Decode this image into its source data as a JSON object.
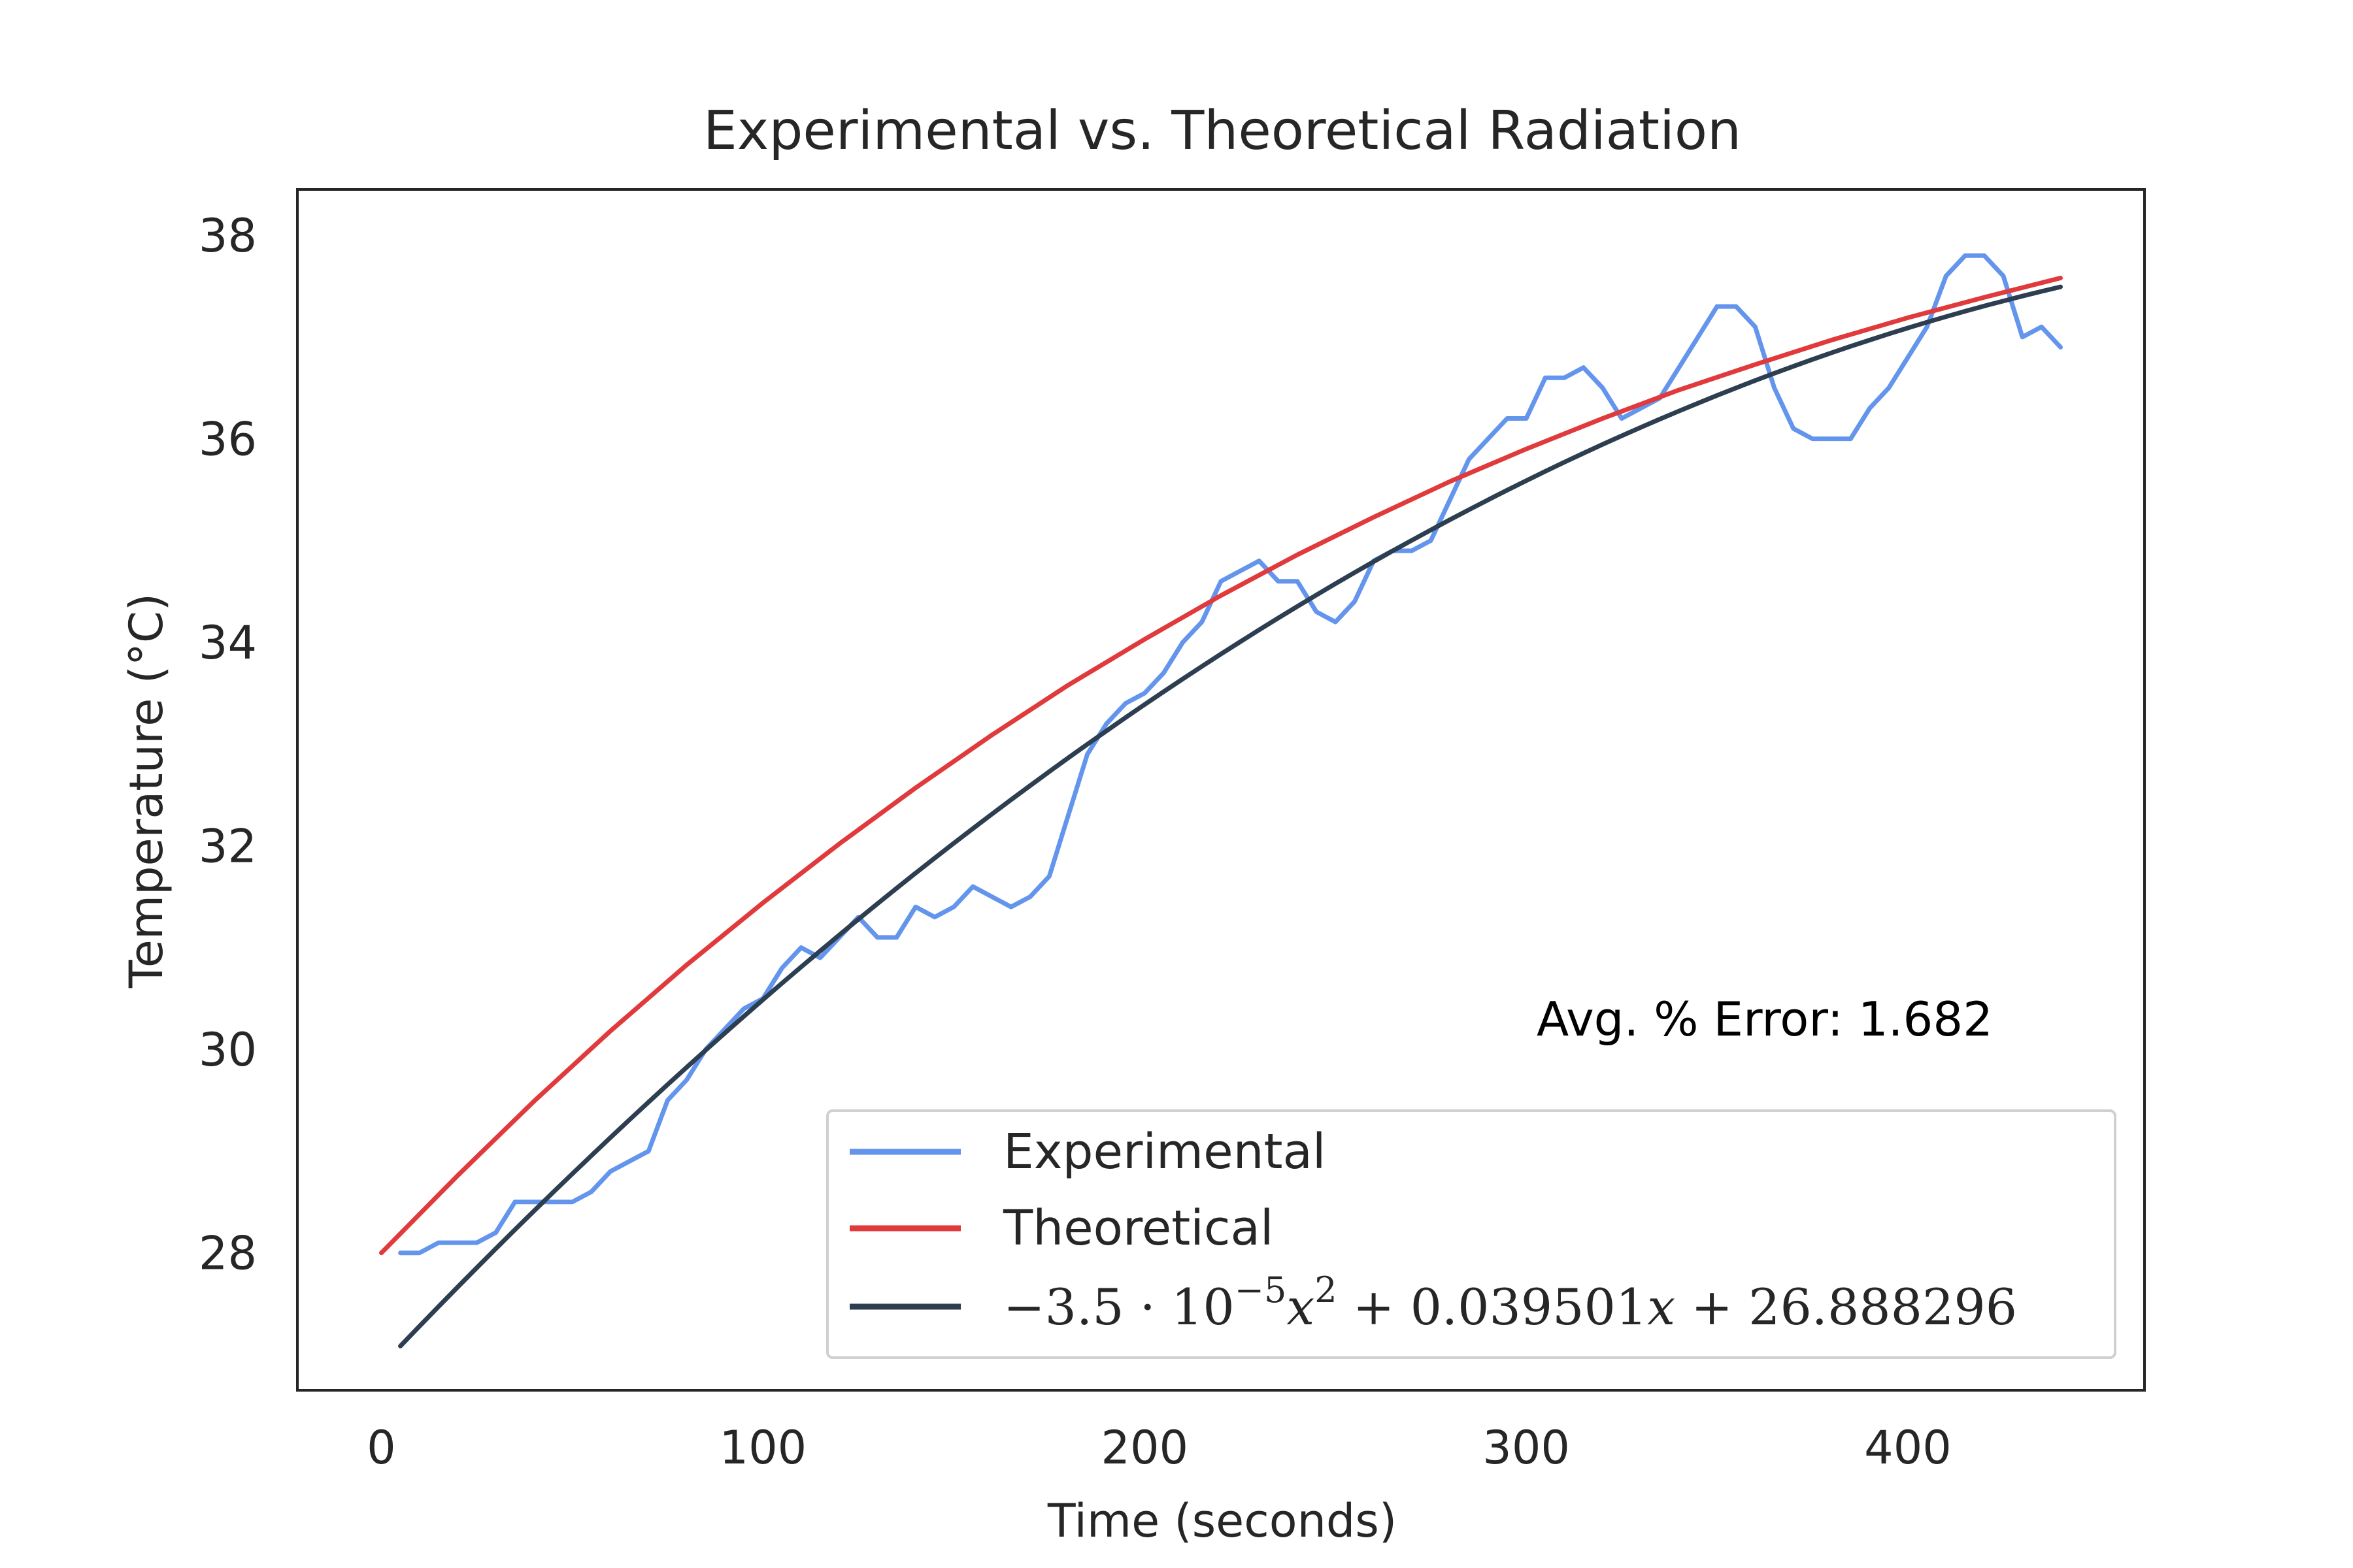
{
  "chart_data": {
    "type": "line",
    "title": "Experimental vs. Theoretical Radiation",
    "xlabel": "Time (seconds)",
    "ylabel": "Temperature (°C)",
    "xlim": [
      -22,
      462
    ],
    "ylim": [
      26.65,
      38.45
    ],
    "x_ticks": [
      0,
      100,
      200,
      300,
      400
    ],
    "y_ticks": [
      28,
      30,
      32,
      34,
      36,
      38
    ],
    "x_tick_labels": [
      "0",
      "100",
      "200",
      "300",
      "400"
    ],
    "y_tick_labels": [
      "28",
      "30",
      "32",
      "34",
      "36",
      "38"
    ],
    "grid": false,
    "legend_position": "lower-right",
    "annotation": "Avg. % Error: 1.682",
    "series": [
      {
        "name": "Experimental",
        "color": "#6495ED",
        "x": [
          5,
          10,
          15,
          20,
          25,
          30,
          35,
          40,
          45,
          50,
          55,
          60,
          65,
          70,
          75,
          80,
          85,
          90,
          95,
          100,
          105,
          110,
          115,
          120,
          125,
          130,
          135,
          140,
          145,
          150,
          155,
          160,
          165,
          170,
          175,
          180,
          185,
          190,
          195,
          200,
          205,
          210,
          215,
          220,
          225,
          230,
          235,
          240,
          245,
          250,
          255,
          260,
          265,
          270,
          275,
          280,
          285,
          290,
          295,
          300,
          305,
          310,
          315,
          320,
          325,
          330,
          335,
          340,
          345,
          350,
          355,
          360,
          365,
          370,
          375,
          380,
          385,
          390,
          395,
          400,
          405,
          410,
          415,
          420,
          425,
          430,
          435,
          440
        ],
        "y": [
          28.0,
          28.0,
          28.1,
          28.1,
          28.1,
          28.2,
          28.5,
          28.5,
          28.5,
          28.5,
          28.6,
          28.8,
          28.9,
          29.0,
          29.5,
          29.7,
          30.0,
          30.2,
          30.4,
          30.5,
          30.8,
          31.0,
          30.9,
          31.1,
          31.3,
          31.1,
          31.1,
          31.4,
          31.3,
          31.4,
          31.6,
          31.5,
          31.4,
          31.5,
          31.7,
          32.3,
          32.9,
          33.2,
          33.4,
          33.5,
          33.7,
          34.0,
          34.2,
          34.6,
          34.7,
          34.8,
          34.6,
          34.6,
          34.3,
          34.2,
          34.4,
          34.8,
          34.9,
          34.9,
          35.0,
          35.4,
          35.8,
          36.0,
          36.2,
          36.2,
          36.6,
          36.6,
          36.7,
          36.5,
          36.2,
          36.3,
          36.4,
          36.7,
          37.0,
          37.3,
          37.3,
          37.1,
          36.5,
          36.1,
          36.0,
          36.0,
          36.0,
          36.3,
          36.5,
          36.8,
          37.1,
          37.6,
          37.8,
          37.8,
          37.6,
          37.0,
          37.1,
          36.9
        ]
      },
      {
        "name": "Theoretical",
        "color": "#E03A3C",
        "model": "exponential approach",
        "x": [
          0,
          20,
          40,
          60,
          80,
          100,
          120,
          140,
          160,
          180,
          200,
          220,
          240,
          260,
          280,
          300,
          320,
          340,
          360,
          380,
          400,
          420,
          440
        ],
        "y": [
          28.0,
          28.76,
          29.49,
          30.18,
          30.83,
          31.44,
          32.02,
          32.57,
          33.09,
          33.58,
          34.03,
          34.46,
          34.86,
          35.23,
          35.58,
          35.9,
          36.2,
          36.48,
          36.73,
          36.97,
          37.19,
          37.39,
          37.58
        ]
      },
      {
        "name": "−3.5 · 10⁻⁵x² + 0.039501x + 26.888296",
        "legend_label_parts": [
          "−3.5 · 10",
          "−5",
          "x",
          "2",
          " + 0.039501",
          "x",
          " + 26.888296"
        ],
        "color": "#2C3E50",
        "polynomial_coefficients": [
          -3.5e-05,
          0.039501,
          26.888296
        ],
        "x_range": [
          5,
          440
        ]
      }
    ]
  }
}
